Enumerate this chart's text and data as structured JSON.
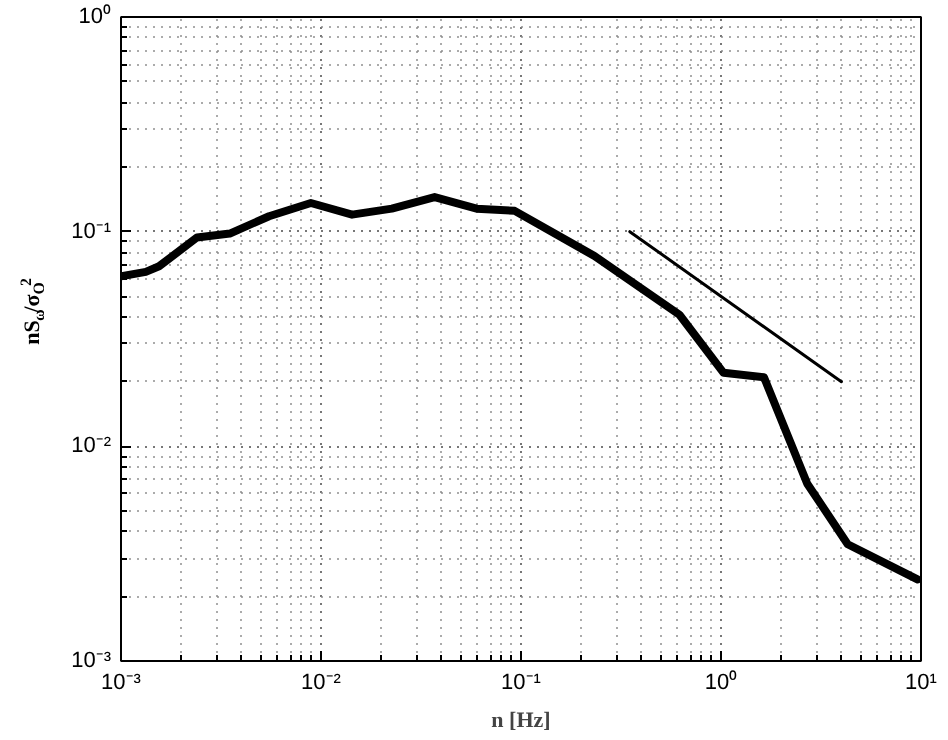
{
  "chart_data": {
    "type": "line",
    "xlabel": "n [Hz]",
    "ylabel": "nS$_{ω}$/σ$_{O}$$^{2}$",
    "log": "xy",
    "grid": true,
    "marker": "none",
    "line_style": "solid",
    "xlim": [
      0.001,
      10
    ],
    "ylim": [
      0.001,
      1
    ],
    "xticks": [
      {
        "value": 0.001,
        "label": "10⁻³"
      },
      {
        "value": 0.01,
        "label": "10⁻²"
      },
      {
        "value": 0.1,
        "label": "10⁻¹"
      },
      {
        "value": 1,
        "label": "10⁰"
      },
      {
        "value": 10,
        "label": "10¹"
      }
    ],
    "yticks": [
      {
        "value": 0.001,
        "label": "10⁻³"
      },
      {
        "value": 0.01,
        "label": "10⁻²"
      },
      {
        "value": 0.1,
        "label": "10⁻¹"
      },
      {
        "value": 1,
        "label": "10⁰"
      }
    ],
    "series": [
      {
        "color": "#000000",
        "x": [
          0.001,
          0.00133,
          0.00155,
          0.0024,
          0.0035,
          0.0055,
          0.0089,
          0.0143,
          0.0226,
          0.037,
          0.06,
          0.093,
          0.233,
          0.62,
          1.03,
          1.64,
          2.7,
          4.3,
          9.6
        ],
        "values": [
          0.062,
          0.065,
          0.069,
          0.094,
          0.098,
          0.118,
          0.136,
          0.12,
          0.128,
          0.145,
          0.128,
          0.125,
          0.077,
          0.041,
          0.022,
          0.021,
          0.0067,
          0.0035,
          0.0024
        ]
      },
      {
        "color": "#000000",
        "x": [
          0.35,
          4
        ],
        "values": [
          0.1,
          0.02
        ]
      }
    ]
  }
}
